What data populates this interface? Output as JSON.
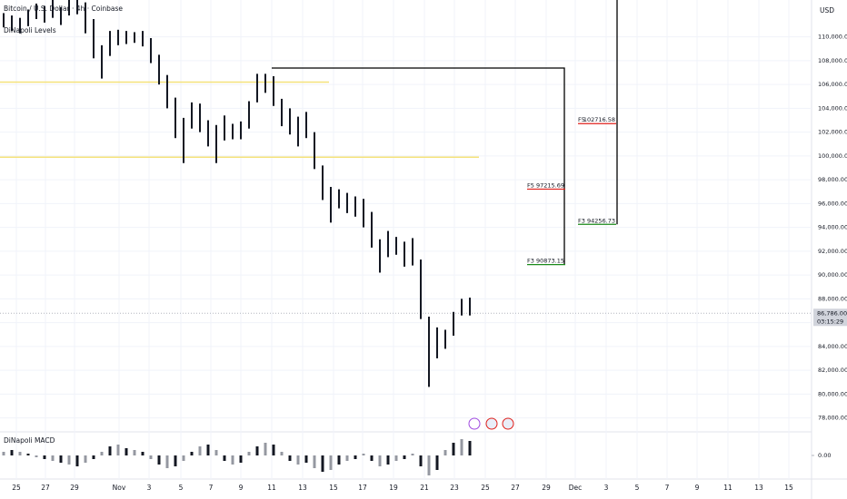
{
  "chart_data": {
    "type": "ohlc",
    "title": "Bitcoin / U.S. Dollar · 4h · Coinbase",
    "indicator_label": "DiNapoli Levels",
    "currency": "USD",
    "color": "#131722",
    "ylim": [
      76900,
      113100
    ],
    "yticks": [
      {
        "value": 78000,
        "label": "78,000.00"
      },
      {
        "value": 80000,
        "label": "80,000.00"
      },
      {
        "value": 82000,
        "label": "82,000.00"
      },
      {
        "value": 84000,
        "label": "84,000.00"
      },
      {
        "value": 86000,
        "label": "86,000.00"
      },
      {
        "value": 88000,
        "label": "88,000.00"
      },
      {
        "value": 90000,
        "label": "90,000.00"
      },
      {
        "value": 92000,
        "label": "92,000.00"
      },
      {
        "value": 94000,
        "label": "94,000.00"
      },
      {
        "value": 96000,
        "label": "96,000.00"
      },
      {
        "value": 98000,
        "label": "98,000.00"
      },
      {
        "value": 100000,
        "label": "100,000.00"
      },
      {
        "value": 102000,
        "label": "102,000.00"
      },
      {
        "value": 104000,
        "label": "104,000.00"
      },
      {
        "value": 106000,
        "label": "106,000.00"
      },
      {
        "value": 108000,
        "label": "108,000.00"
      },
      {
        "value": 110000,
        "label": "110,000.00"
      }
    ],
    "grid": true,
    "categories": [
      "25",
      "27",
      "29",
      "Nov",
      "3",
      "5",
      "7",
      "9",
      "11",
      "13",
      "15",
      "17",
      "19",
      "21",
      "23",
      "25",
      "27",
      "29",
      "Dec",
      "3",
      "5",
      "7",
      "9",
      "11",
      "13",
      "15"
    ],
    "low": [
      110800,
      110500,
      110300,
      110900,
      111500,
      111200,
      111600,
      111000,
      111800,
      111900,
      110300,
      108200,
      106500,
      108400,
      109300,
      109400,
      109500,
      109200,
      107800,
      106000,
      104000,
      101500,
      99400,
      102300,
      102000,
      100800,
      99400,
      101300,
      101400,
      101400,
      102300,
      104500,
      105300,
      104200,
      102500,
      101800,
      100800,
      101500,
      98900,
      96300,
      94400,
      95600,
      95200,
      94900,
      94000,
      92300,
      90200,
      91500,
      91700,
      90700,
      90800,
      86300,
      80600,
      83000,
      83800,
      84900,
      86600,
      86600
    ],
    "high": [
      112000,
      111800,
      111600,
      112300,
      112800,
      112600,
      113200,
      112500,
      113400,
      113500,
      112900,
      111500,
      109300,
      110500,
      110600,
      110500,
      110400,
      110500,
      109900,
      108500,
      106800,
      104900,
      103200,
      104500,
      104400,
      103000,
      102600,
      103400,
      102700,
      102900,
      104600,
      106900,
      106900,
      106700,
      104800,
      104000,
      103300,
      103700,
      102000,
      99200,
      97400,
      97200,
      96900,
      96600,
      96400,
      95300,
      93000,
      93700,
      93200,
      92800,
      93100,
      91300,
      86500,
      85600,
      85400,
      86900,
      88000,
      88100
    ],
    "levels": [
      {
        "value": 106200,
        "color": "#f5e27a"
      },
      {
        "value": 99900,
        "color": "#f5e27a"
      }
    ],
    "fib_targets": [
      {
        "name": "F5",
        "value": 97215.69,
        "color": "#e0201b"
      },
      {
        "name": "F3",
        "value": 90873.15,
        "color": "#1a8a1a"
      },
      {
        "name": "F5",
        "value": 102716.58,
        "color": "#e0201b"
      },
      {
        "name": "F3",
        "value": 94256.73,
        "color": "#1a8a1a"
      }
    ],
    "last_price": {
      "value": 86786,
      "label": "86,786.00"
    },
    "countdown": "03:15:29",
    "macd": {
      "name": "DiNapoli MACD",
      "ylim": [
        -1300,
        1200
      ],
      "yticks": [
        {
          "value": 0,
          "label": "0.00"
        }
      ],
      "values": [
        200,
        300,
        200,
        100,
        -100,
        -200,
        -300,
        -400,
        -500,
        -600,
        -400,
        -200,
        200,
        500,
        600,
        400,
        300,
        200,
        -200,
        -500,
        -700,
        -600,
        -300,
        200,
        500,
        600,
        300,
        -300,
        -500,
        -400,
        200,
        500,
        700,
        600,
        200,
        -300,
        -500,
        -400,
        -700,
        -900,
        -800,
        -500,
        -300,
        -200,
        100,
        -300,
        -600,
        -500,
        -300,
        -200,
        100,
        -600,
        -1100,
        -800,
        300,
        700,
        900,
        800
      ]
    }
  }
}
